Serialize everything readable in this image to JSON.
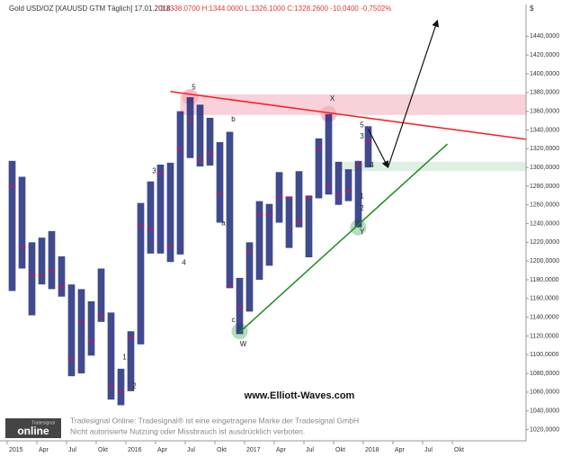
{
  "chart_data": {
    "type": "ohlc",
    "title": "Gold USD/OZ [XAUUSD GTM Täglich] 17.01.2018 -",
    "subtitle": "O:1338.0700 H:1344.0000 L:1326.1000 C:1328.2600 -10,0400 -0,7502%",
    "y_unit": "$",
    "watermark": "www.Elliott-Waves.com",
    "footer": [
      "Tradesignal Online: Tradesignal® ist eine eingetragene Marke der Tradesignal GmbH",
      "Nicht autorisierte Nutzung oder Missbrauch ist ausdrücklich verboten."
    ],
    "logo": [
      "Tradesignal",
      "online"
    ],
    "color": "#1f2a7a",
    "close_color": "#c2185b",
    "x": [
      "2015-01",
      "2015-02",
      "2015-03",
      "2015-04",
      "2015-05",
      "2015-06",
      "2015-07",
      "2015-08",
      "2015-09",
      "2015-10",
      "2015-11",
      "2015-12",
      "2016-01",
      "2016-02",
      "2016-03",
      "2016-04",
      "2016-05",
      "2016-06",
      "2016-07",
      "2016-08",
      "2016-09",
      "2016-10",
      "2016-11",
      "2016-12",
      "2017-01",
      "2017-02",
      "2017-03",
      "2017-04",
      "2017-05",
      "2017-06",
      "2017-07",
      "2017-08",
      "2017-09",
      "2017-10",
      "2017-11",
      "2017-12",
      "2018-01"
    ],
    "high": [
      1307,
      1290,
      1220,
      1225,
      1232,
      1205,
      1175,
      1170,
      1157,
      1192,
      1145,
      1085,
      1125,
      1262,
      1285,
      1303,
      1305,
      1360,
      1375,
      1367,
      1353,
      1327,
      1338,
      1182,
      1220,
      1264,
      1261,
      1295,
      1269,
      1296,
      1270,
      1331,
      1357,
      1306,
      1298,
      1307,
      1344
    ],
    "low": [
      1168,
      1192,
      1142,
      1175,
      1170,
      1162,
      1077,
      1080,
      1099,
      1135,
      1052,
      1046,
      1061,
      1111,
      1208,
      1208,
      1199,
      1207,
      1310,
      1301,
      1302,
      1241,
      1171,
      1122,
      1146,
      1180,
      1195,
      1241,
      1214,
      1236,
      1204,
      1267,
      1271,
      1260,
      1264,
      1236,
      1300
    ],
    "close": [
      1280,
      1215,
      1185,
      1185,
      1190,
      1172,
      1095,
      1135,
      1115,
      1142,
      1065,
      1060,
      1118,
      1238,
      1234,
      1293,
      1215,
      1320,
      1350,
      1308,
      1315,
      1272,
      1173,
      1150,
      1210,
      1250,
      1249,
      1268,
      1268,
      1242,
      1268,
      1320,
      1280,
      1270,
      1275,
      1302,
      1328
    ],
    "xlim": [
      "2015-01",
      "2019-05"
    ],
    "xticks": [
      {
        "value": "2015-01",
        "label": "2015"
      },
      {
        "value": "2015-04",
        "label": "Apr"
      },
      {
        "value": "2015-07",
        "label": "Jul"
      },
      {
        "value": "2015-10",
        "label": "Okt"
      },
      {
        "value": "2016-01",
        "label": "2016"
      },
      {
        "value": "2016-04",
        "label": "Apr"
      },
      {
        "value": "2016-07",
        "label": "Jul"
      },
      {
        "value": "2016-10",
        "label": "Okt"
      },
      {
        "value": "2017-01",
        "label": "2017"
      },
      {
        "value": "2017-04",
        "label": "Apr"
      },
      {
        "value": "2017-07",
        "label": "Jul"
      },
      {
        "value": "2017-10",
        "label": "Okt"
      },
      {
        "value": "2018-01",
        "label": "2018"
      },
      {
        "value": "2018-04",
        "label": "Apr"
      },
      {
        "value": "2018-07",
        "label": "Jul"
      },
      {
        "value": "2018-10",
        "label": "Okt"
      }
    ],
    "ylim": [
      1008,
      1474
    ],
    "yticks": [
      {
        "value": 1020,
        "label": "1020,0000"
      },
      {
        "value": 1040,
        "label": "1040,0000"
      },
      {
        "value": 1060,
        "label": "1060,0000"
      },
      {
        "value": 1080,
        "label": "1080,0000"
      },
      {
        "value": 1100,
        "label": "1100,0000"
      },
      {
        "value": 1120,
        "label": "1120,0000"
      },
      {
        "value": 1140,
        "label": "1140,0000"
      },
      {
        "value": 1160,
        "label": "1160,0000"
      },
      {
        "value": 1180,
        "label": "1180,0000"
      },
      {
        "value": 1200,
        "label": "1200,0000"
      },
      {
        "value": 1220,
        "label": "1220,0000"
      },
      {
        "value": 1240,
        "label": "1240,0000"
      },
      {
        "value": 1260,
        "label": "1260,0000"
      },
      {
        "value": 1280,
        "label": "1280,0000"
      },
      {
        "value": 1300,
        "label": "1300,0000"
      },
      {
        "value": 1320,
        "label": "1320,0000"
      },
      {
        "value": 1340,
        "label": "1340,0000"
      },
      {
        "value": 1360,
        "label": "1360,0000"
      },
      {
        "value": 1380,
        "label": "1380,0000"
      },
      {
        "value": 1400,
        "label": "1400,0000"
      },
      {
        "value": 1420,
        "label": "1420,0000"
      },
      {
        "value": 1440,
        "label": "1440,0000"
      }
    ],
    "zones": [
      {
        "color": "#f7c6d0",
        "x": "2016-06",
        "y": [
          1356,
          1378
        ]
      },
      {
        "color": "#d6ecd9",
        "x": "2017-10",
        "y": [
          1296,
          1306
        ]
      }
    ],
    "trendlines": [
      {
        "color": "#ff1a1a",
        "x": [
          "2016-05",
          "2019-05"
        ],
        "y": [
          1381,
          1330
        ]
      },
      {
        "color": "#1c8c1c",
        "x": [
          "2016-12",
          "2018-09"
        ],
        "y": [
          1124,
          1325
        ]
      }
    ],
    "arrows": [
      {
        "x": [
          "2018-01",
          "2018-03"
        ],
        "y": [
          1341,
          1300
        ]
      },
      {
        "x": [
          "2018-03",
          "2018-08"
        ],
        "y": [
          1300,
          1457
        ]
      }
    ],
    "circles": [
      {
        "color": "#f4a9b8",
        "x": "2016-07",
        "y": 1375
      },
      {
        "color": "#f4a9b8",
        "x": "2017-09",
        "y": 1357
      },
      {
        "color": "#9fd0a4",
        "x": "2016-12",
        "y": 1125
      },
      {
        "color": "#9fd0a4",
        "x": "2017-12",
        "y": 1236
      }
    ],
    "labels": [
      {
        "text": "5",
        "x": "2016-07",
        "y": 1385
      },
      {
        "text": "X",
        "x": "2017-09",
        "y": 1373
      },
      {
        "text": "b",
        "x": "2016-11",
        "y": 1351
      },
      {
        "text": "3",
        "x": "2016-03",
        "y": 1296
      },
      {
        "text": "4",
        "x": "2016-06",
        "y": 1198
      },
      {
        "text": "a",
        "x": "2016-10",
        "y": 1240
      },
      {
        "text": "c",
        "x": "2016-11",
        "y": 1137
      },
      {
        "text": "W",
        "x": "2016-12",
        "y": 1111
      },
      {
        "text": "1",
        "x": "2015-12",
        "y": 1097
      },
      {
        "text": "2",
        "x": "2016-01",
        "y": 1066
      },
      {
        "text": "5",
        "x": "2017-12",
        "y": 1345
      },
      {
        "text": "3",
        "x": "2017-12",
        "y": 1333
      },
      {
        "text": "4",
        "x": "2018-01",
        "y": 1302
      },
      {
        "text": "1",
        "x": "2017-12",
        "y": 1269
      },
      {
        "text": "2",
        "x": "2017-12",
        "y": 1256
      },
      {
        "text": "Y",
        "x": "2017-12",
        "y": 1231
      }
    ]
  }
}
